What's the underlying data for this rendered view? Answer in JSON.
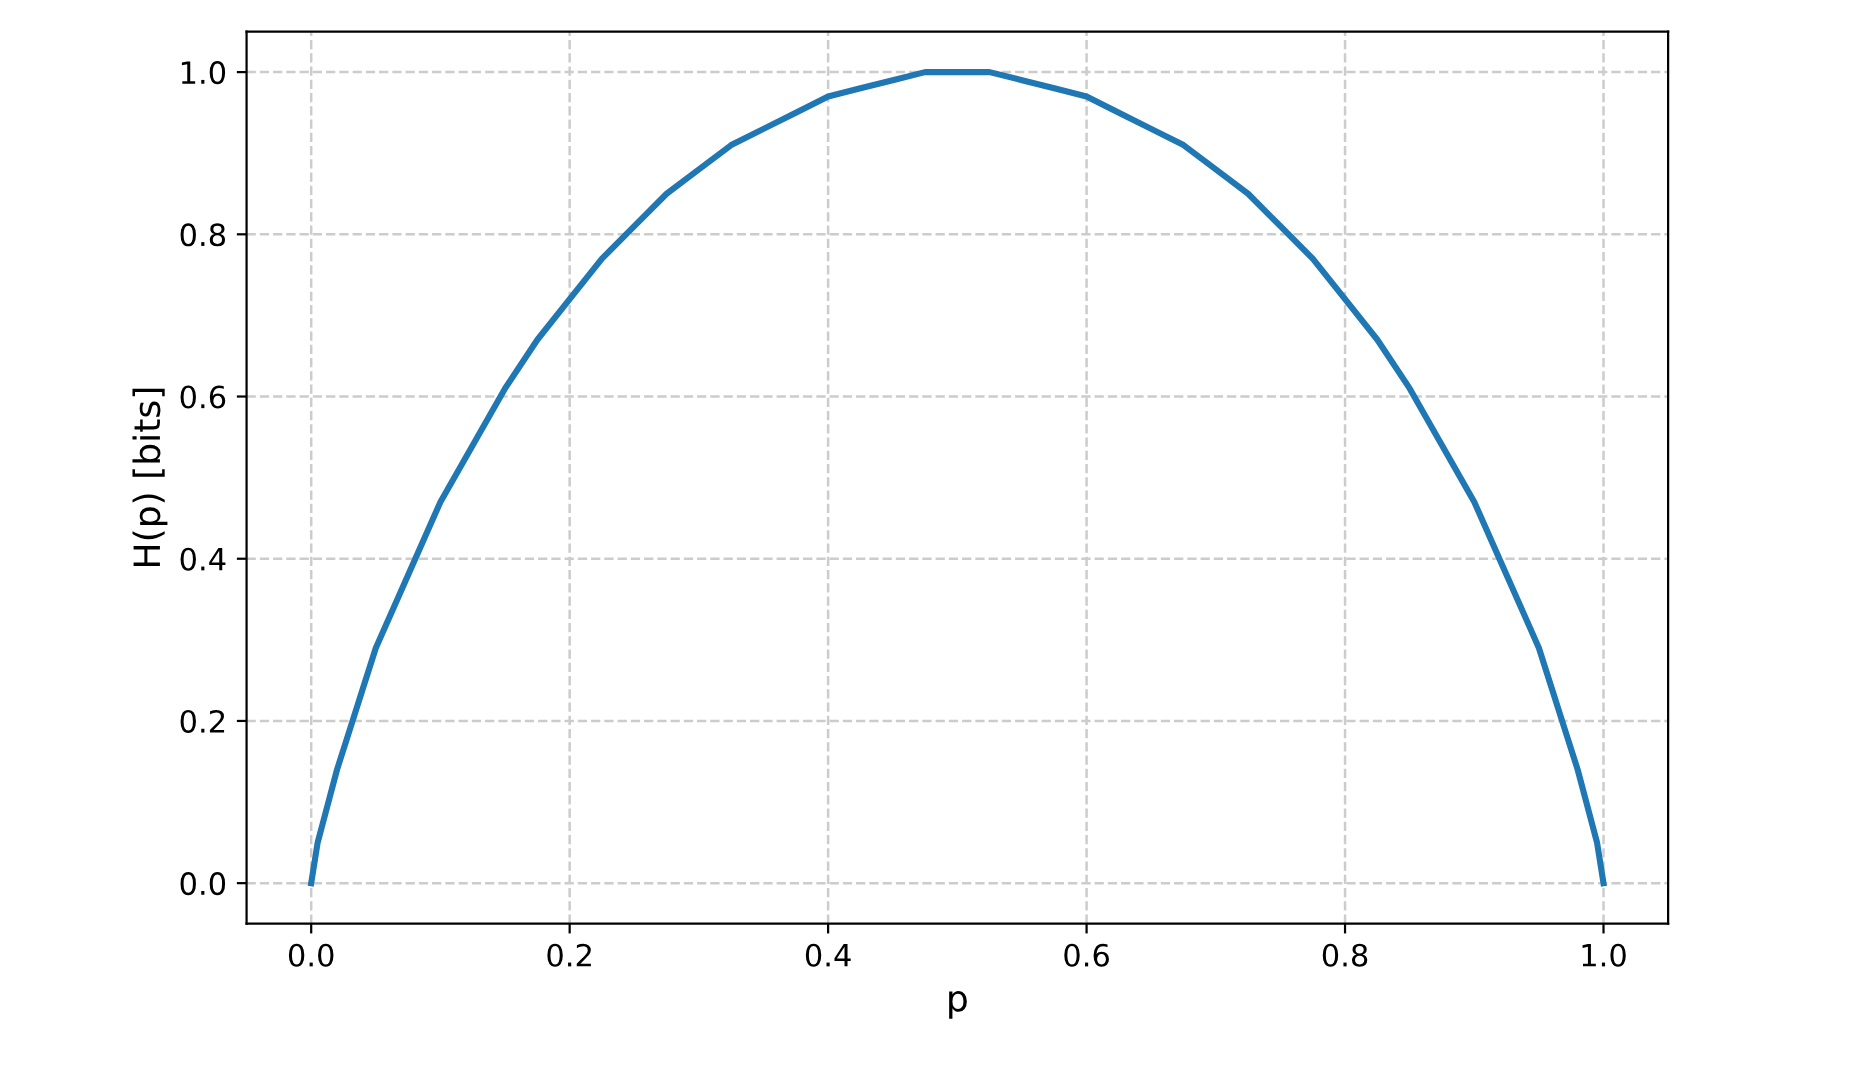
{
  "chart_data": {
    "type": "line",
    "xlabel": "p",
    "ylabel": "H(p) [bits]",
    "x": [
      0,
      0.005,
      0.01,
      0.02,
      0.03,
      0.04,
      0.05,
      0.075,
      0.1,
      0.125,
      0.15,
      0.175,
      0.2,
      0.225,
      0.25,
      0.275,
      0.3,
      0.325,
      0.35,
      0.375,
      0.4,
      0.425,
      0.45,
      0.475,
      0.5,
      0.525,
      0.55,
      0.575,
      0.6,
      0.625,
      0.65,
      0.675,
      0.7,
      0.725,
      0.75,
      0.775,
      0.8,
      0.825,
      0.85,
      0.875,
      0.9,
      0.925,
      0.95,
      0.96,
      0.97,
      0.98,
      0.99,
      0.995,
      1
    ],
    "series": [
      {
        "color": "#1f77b4",
        "values": [
          0,
          0.05,
          0.08,
          0.14,
          0.19,
          0.24,
          0.29,
          0.38,
          0.47,
          0.54,
          0.61,
          0.67,
          0.72,
          0.77,
          0.81,
          0.85,
          0.88,
          0.91,
          0.93,
          0.95,
          0.97,
          0.98,
          0.99,
          1.0,
          1.0,
          1.0,
          0.99,
          0.98,
          0.97,
          0.95,
          0.93,
          0.91,
          0.88,
          0.85,
          0.81,
          0.77,
          0.72,
          0.67,
          0.61,
          0.54,
          0.47,
          0.38,
          0.29,
          0.24,
          0.19,
          0.14,
          0.08,
          0.05,
          0
        ]
      }
    ],
    "xlim": [
      -0.05,
      1.05
    ],
    "ylim": [
      -0.05,
      1.05
    ],
    "xticks": [
      {
        "value": 0,
        "label": "0.0"
      },
      {
        "value": 0.2,
        "label": "0.2"
      },
      {
        "value": 0.4,
        "label": "0.4"
      },
      {
        "value": 0.6,
        "label": "0.6"
      },
      {
        "value": 0.8,
        "label": "0.8"
      },
      {
        "value": 1.0,
        "label": "1.0"
      }
    ],
    "yticks": [
      {
        "value": 0,
        "label": "0.0"
      },
      {
        "value": 0.2,
        "label": "0.2"
      },
      {
        "value": 0.4,
        "label": "0.4"
      },
      {
        "value": 0.6,
        "label": "0.6"
      },
      {
        "value": 0.8,
        "label": "0.8"
      },
      {
        "value": 1.0,
        "label": "1.0"
      }
    ],
    "grid": true,
    "line_style": "solid",
    "marker": "none"
  }
}
